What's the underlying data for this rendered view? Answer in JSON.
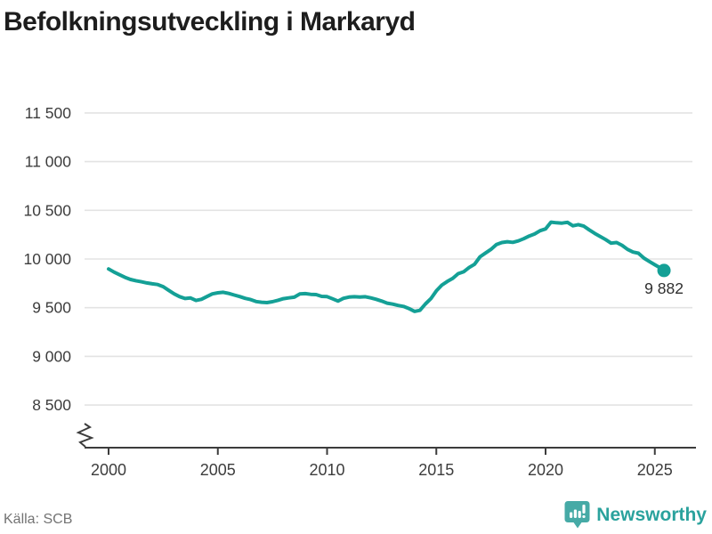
{
  "title": "Befolkningsutveckling i Markaryd",
  "footer": {
    "source": "Källa: SCB",
    "brand": "Newsworthy"
  },
  "colors": {
    "line": "#14a096",
    "grid": "#e3e3e3",
    "axis": "#3c3c3c",
    "tick_label": "#3d3d3d",
    "end_label": "#2e2e2e",
    "brand_icon": "#46aaa6",
    "brand_text": "#2aa29d"
  },
  "chart_data": {
    "type": "line",
    "title": "Befolkningsutveckling i Markaryd",
    "xlabel": "",
    "ylabel": "",
    "grid": "horizontal",
    "axis_break": true,
    "legend": "none",
    "x_ticks": [
      2000,
      2005,
      2010,
      2015,
      2020,
      2025
    ],
    "y_ticks": [
      {
        "value": 11500,
        "label": "11 500"
      },
      {
        "value": 11000,
        "label": "11 000"
      },
      {
        "value": 10500,
        "label": "10 500"
      },
      {
        "value": 10000,
        "label": "10 000"
      },
      {
        "value": 9500,
        "label": "9 500"
      },
      {
        "value": 9000,
        "label": "9 000"
      },
      {
        "value": 8500,
        "label": "8 500"
      }
    ],
    "xlim": [
      1998.9,
      2026.8
    ],
    "ylim": [
      8250,
      11750
    ],
    "end_point": {
      "label": "9 882",
      "value": 9882
    },
    "series": [
      {
        "name": "Befolkning",
        "points": [
          [
            2000.0,
            9898
          ],
          [
            2000.25,
            9866
          ],
          [
            2000.5,
            9838
          ],
          [
            2000.75,
            9812
          ],
          [
            2001.0,
            9790
          ],
          [
            2001.25,
            9777
          ],
          [
            2001.5,
            9766
          ],
          [
            2001.75,
            9754
          ],
          [
            2002.0,
            9745
          ],
          [
            2002.25,
            9738
          ],
          [
            2002.5,
            9716
          ],
          [
            2002.75,
            9678
          ],
          [
            2003.0,
            9642
          ],
          [
            2003.25,
            9613
          ],
          [
            2003.5,
            9594
          ],
          [
            2003.75,
            9600
          ],
          [
            2004.0,
            9574
          ],
          [
            2004.25,
            9586
          ],
          [
            2004.5,
            9614
          ],
          [
            2004.75,
            9642
          ],
          [
            2005.0,
            9653
          ],
          [
            2005.25,
            9658
          ],
          [
            2005.5,
            9646
          ],
          [
            2005.75,
            9630
          ],
          [
            2006.0,
            9614
          ],
          [
            2006.25,
            9596
          ],
          [
            2006.5,
            9583
          ],
          [
            2006.75,
            9563
          ],
          [
            2007.0,
            9556
          ],
          [
            2007.25,
            9552
          ],
          [
            2007.5,
            9561
          ],
          [
            2007.75,
            9576
          ],
          [
            2008.0,
            9592
          ],
          [
            2008.25,
            9601
          ],
          [
            2008.5,
            9608
          ],
          [
            2008.75,
            9641
          ],
          [
            2009.0,
            9644
          ],
          [
            2009.25,
            9637
          ],
          [
            2009.5,
            9634
          ],
          [
            2009.75,
            9616
          ],
          [
            2010.0,
            9613
          ],
          [
            2010.25,
            9591
          ],
          [
            2010.5,
            9568
          ],
          [
            2010.75,
            9596
          ],
          [
            2011.0,
            9609
          ],
          [
            2011.25,
            9612
          ],
          [
            2011.5,
            9609
          ],
          [
            2011.75,
            9612
          ],
          [
            2012.0,
            9601
          ],
          [
            2012.25,
            9586
          ],
          [
            2012.5,
            9568
          ],
          [
            2012.75,
            9547
          ],
          [
            2013.0,
            9537
          ],
          [
            2013.25,
            9523
          ],
          [
            2013.5,
            9513
          ],
          [
            2013.75,
            9491
          ],
          [
            2014.0,
            9462
          ],
          [
            2014.25,
            9473
          ],
          [
            2014.5,
            9538
          ],
          [
            2014.75,
            9592
          ],
          [
            2015.0,
            9673
          ],
          [
            2015.25,
            9731
          ],
          [
            2015.5,
            9769
          ],
          [
            2015.75,
            9801
          ],
          [
            2016.0,
            9849
          ],
          [
            2016.25,
            9868
          ],
          [
            2016.5,
            9912
          ],
          [
            2016.75,
            9946
          ],
          [
            2017.0,
            10023
          ],
          [
            2017.25,
            10061
          ],
          [
            2017.5,
            10099
          ],
          [
            2017.75,
            10148
          ],
          [
            2018.0,
            10169
          ],
          [
            2018.25,
            10177
          ],
          [
            2018.5,
            10171
          ],
          [
            2018.75,
            10186
          ],
          [
            2019.0,
            10208
          ],
          [
            2019.25,
            10236
          ],
          [
            2019.5,
            10257
          ],
          [
            2019.75,
            10291
          ],
          [
            2020.0,
            10309
          ],
          [
            2020.25,
            10378
          ],
          [
            2020.5,
            10372
          ],
          [
            2020.75,
            10368
          ],
          [
            2021.0,
            10377
          ],
          [
            2021.25,
            10341
          ],
          [
            2021.5,
            10353
          ],
          [
            2021.75,
            10337
          ],
          [
            2022.0,
            10299
          ],
          [
            2022.25,
            10263
          ],
          [
            2022.5,
            10231
          ],
          [
            2022.75,
            10199
          ],
          [
            2023.0,
            10163
          ],
          [
            2023.25,
            10169
          ],
          [
            2023.5,
            10141
          ],
          [
            2023.75,
            10099
          ],
          [
            2024.0,
            10071
          ],
          [
            2024.25,
            10059
          ],
          [
            2024.5,
            10009
          ],
          [
            2024.75,
            9974
          ],
          [
            2025.0,
            9941
          ],
          [
            2025.25,
            9909
          ],
          [
            2025.42,
            9882
          ]
        ]
      }
    ]
  }
}
